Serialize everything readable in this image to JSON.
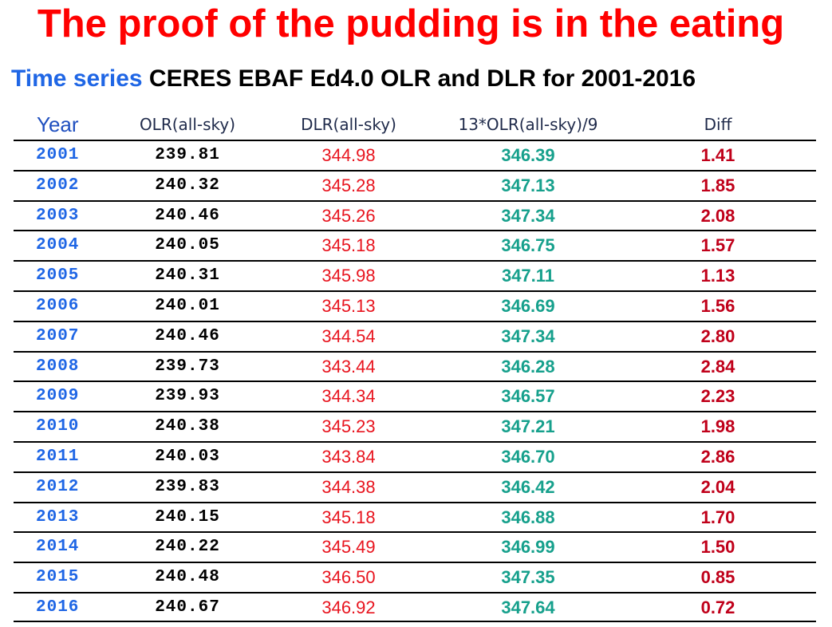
{
  "title": "The proof of the pudding is in the eating",
  "subtitle": {
    "lead": "Time series",
    "rest": " CERES EBAF Ed4.0 OLR and DLR for 2001-2016"
  },
  "table": {
    "headers": {
      "year": "Year",
      "olr": "OLR(all-sky)",
      "dlr": "DLR(all-sky)",
      "calc": "13*OLR(all-sky)/9",
      "diff": "Diff"
    },
    "rows": [
      {
        "year": "2001",
        "olr": "239.81",
        "dlr": "344.98",
        "calc": "346.39",
        "diff": "1.41"
      },
      {
        "year": "2002",
        "olr": "240.32",
        "dlr": "345.28",
        "calc": "347.13",
        "diff": "1.85"
      },
      {
        "year": "2003",
        "olr": "240.46",
        "dlr": "345.26",
        "calc": "347.34",
        "diff": "2.08"
      },
      {
        "year": "2004",
        "olr": "240.05",
        "dlr": "345.18",
        "calc": "346.75",
        "diff": "1.57"
      },
      {
        "year": "2005",
        "olr": "240.31",
        "dlr": "345.98",
        "calc": "347.11",
        "diff": "1.13"
      },
      {
        "year": "2006",
        "olr": "240.01",
        "dlr": "345.13",
        "calc": "346.69",
        "diff": "1.56"
      },
      {
        "year": "2007",
        "olr": "240.46",
        "dlr": "344.54",
        "calc": "347.34",
        "diff": "2.80"
      },
      {
        "year": "2008",
        "olr": "239.73",
        "dlr": "343.44",
        "calc": "346.28",
        "diff": "2.84"
      },
      {
        "year": "2009",
        "olr": "239.93",
        "dlr": "344.34",
        "calc": "346.57",
        "diff": "2.23"
      },
      {
        "year": "2010",
        "olr": "240.38",
        "dlr": "345.23",
        "calc": "347.21",
        "diff": "1.98"
      },
      {
        "year": "2011",
        "olr": "240.03",
        "dlr": "343.84",
        "calc": "346.70",
        "diff": "2.86"
      },
      {
        "year": "2012",
        "olr": "239.83",
        "dlr": "344.38",
        "calc": "346.42",
        "diff": "2.04"
      },
      {
        "year": "2013",
        "olr": "240.15",
        "dlr": "345.18",
        "calc": "346.88",
        "diff": "1.70"
      },
      {
        "year": "2014",
        "olr": "240.22",
        "dlr": "345.49",
        "calc": "346.99",
        "diff": "1.50"
      },
      {
        "year": "2015",
        "olr": "240.48",
        "dlr": "346.50",
        "calc": "347.35",
        "diff": "0.85"
      },
      {
        "year": "2016",
        "olr": "240.67",
        "dlr": "346.92",
        "calc": "347.64",
        "diff": "0.72"
      }
    ]
  },
  "colors": {
    "title": "#ff0000",
    "subtitle_lead": "#1f66e5",
    "year": "#1f66e5",
    "olr": "#000000",
    "dlr": "#e8141e",
    "calc": "#16a08c",
    "diff": "#c0001a"
  }
}
